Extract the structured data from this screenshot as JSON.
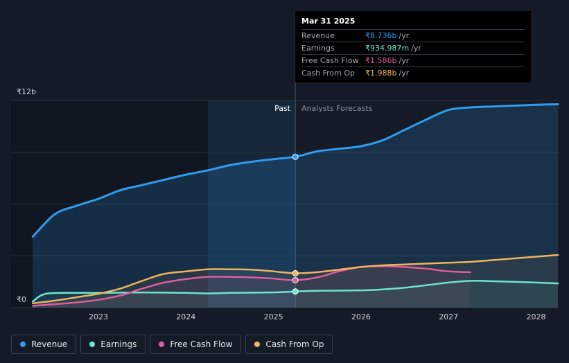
{
  "tooltip": {
    "date": "Mar 31 2025",
    "rows": [
      {
        "label": "Revenue",
        "value": "₹8.736b",
        "unit": "/yr",
        "color": "#2e9cf0"
      },
      {
        "label": "Earnings",
        "value": "₹934.987m",
        "unit": "/yr",
        "color": "#6ee6cf"
      },
      {
        "label": "Free Cash Flow",
        "value": "₹1.586b",
        "unit": "/yr",
        "color": "#e05c9c"
      },
      {
        "label": "Cash From Op",
        "value": "₹1.988b",
        "unit": "/yr",
        "color": "#f0b35f"
      }
    ]
  },
  "legend": [
    {
      "label": "Revenue",
      "color": "#2e9cf0"
    },
    {
      "label": "Earnings",
      "color": "#6ee6cf"
    },
    {
      "label": "Free Cash Flow",
      "color": "#e05c9c"
    },
    {
      "label": "Cash From Op",
      "color": "#f0b35f"
    }
  ],
  "chart_data": {
    "type": "line",
    "title": "",
    "xlabel": "",
    "ylabel": "",
    "ylim": [
      0,
      12
    ],
    "y_unit": "₹ billions",
    "y_tick_labels": [
      {
        "value": 12,
        "label": "₹12b"
      },
      {
        "value": 0,
        "label": "₹0"
      }
    ],
    "x_ticks": [
      2023,
      2024,
      2025,
      2026,
      2027,
      2028
    ],
    "xlim": [
      2022.25,
      2028.25
    ],
    "past_label": "Past",
    "forecast_label": "Analysts Forecasts",
    "divider_x": 2025.25,
    "highlight_start_x": 2024.25,
    "colors": {
      "revenue": "#2e9cf0",
      "earnings": "#6ee6cf",
      "fcf": "#e05c9c",
      "cfo": "#f0b35f",
      "grid": "#2a313c",
      "axis_text": "#d0d3d8"
    },
    "series": [
      {
        "key": "revenue",
        "name": "Revenue",
        "x": [
          2022.25,
          2022.5,
          2022.75,
          2023.0,
          2023.25,
          2023.5,
          2023.75,
          2024.0,
          2024.25,
          2024.5,
          2024.75,
          2025.0,
          2025.25,
          2025.5,
          2025.75,
          2026.0,
          2026.25,
          2026.5,
          2026.75,
          2027.0,
          2027.25,
          2027.5,
          2027.75,
          2028.0,
          2028.25
        ],
        "y": [
          4.1,
          5.4,
          5.9,
          6.3,
          6.8,
          7.1,
          7.4,
          7.7,
          7.95,
          8.25,
          8.45,
          8.6,
          8.736,
          9.05,
          9.2,
          9.35,
          9.7,
          10.3,
          10.9,
          11.45,
          11.6,
          11.65,
          11.7,
          11.75,
          11.78
        ]
      },
      {
        "key": "earnings",
        "name": "Earnings",
        "x": [
          2022.25,
          2022.4,
          2022.75,
          2023.0,
          2023.5,
          2024.0,
          2024.25,
          2024.5,
          2025.0,
          2025.25,
          2025.5,
          2026.0,
          2026.25,
          2026.5,
          2026.75,
          2027.0,
          2027.25,
          2027.5,
          2028.0,
          2028.25
        ],
        "y": [
          0.35,
          0.8,
          0.85,
          0.85,
          0.88,
          0.85,
          0.82,
          0.85,
          0.88,
          0.935,
          0.97,
          1.0,
          1.05,
          1.15,
          1.3,
          1.45,
          1.55,
          1.53,
          1.45,
          1.4
        ]
      },
      {
        "key": "fcf",
        "name": "Free Cash Flow",
        "x": [
          2022.25,
          2022.5,
          2022.75,
          2023.0,
          2023.25,
          2023.5,
          2023.75,
          2024.0,
          2024.25,
          2024.5,
          2024.75,
          2025.0,
          2025.25,
          2025.5,
          2025.75,
          2026.0,
          2026.25,
          2026.5,
          2026.75,
          2027.0,
          2027.25
        ],
        "y": [
          0.1,
          0.2,
          0.3,
          0.45,
          0.7,
          1.1,
          1.45,
          1.65,
          1.78,
          1.78,
          1.75,
          1.68,
          1.586,
          1.75,
          2.1,
          2.35,
          2.4,
          2.35,
          2.25,
          2.1,
          2.05
        ]
      },
      {
        "key": "cfo",
        "name": "Cash From Op",
        "x": [
          2022.25,
          2022.5,
          2022.75,
          2023.0,
          2023.25,
          2023.5,
          2023.75,
          2024.0,
          2024.25,
          2024.5,
          2024.75,
          2025.0,
          2025.25,
          2025.5,
          2025.75,
          2026.0,
          2026.25,
          2026.5,
          2026.75,
          2027.0,
          2027.25,
          2027.5,
          2027.75,
          2028.0,
          2028.25
        ],
        "y": [
          0.25,
          0.4,
          0.6,
          0.8,
          1.1,
          1.55,
          1.95,
          2.1,
          2.22,
          2.22,
          2.2,
          2.1,
          1.988,
          2.05,
          2.2,
          2.35,
          2.45,
          2.5,
          2.55,
          2.6,
          2.65,
          2.75,
          2.85,
          2.95,
          3.05
        ]
      }
    ],
    "highlight_point_x": 2025.25
  }
}
